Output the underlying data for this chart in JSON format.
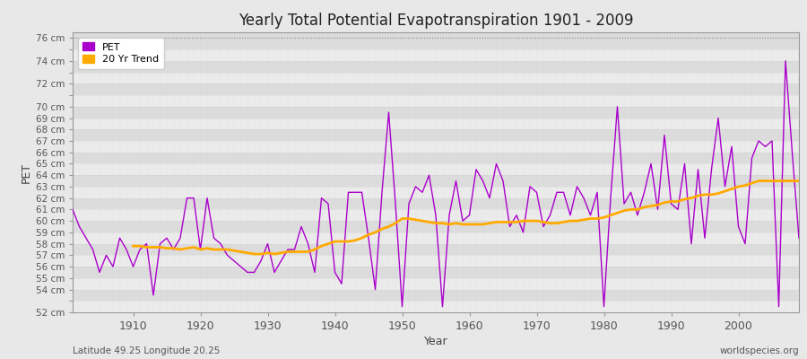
{
  "title": "Yearly Total Potential Evapotranspiration 1901 - 2009",
  "xlabel": "Year",
  "ylabel": "PET",
  "subtitle": "Latitude 49.25 Longitude 20.25",
  "watermark": "worldspecies.org",
  "pet_color": "#aa00cc",
  "trend_color": "#ffaa00",
  "bg_color": "#e8e8e8",
  "plot_bg_light": "#ebebeb",
  "plot_bg_dark": "#dcdcdc",
  "grid_color": "#cccccc",
  "years": [
    1901,
    1902,
    1903,
    1904,
    1905,
    1906,
    1907,
    1908,
    1909,
    1910,
    1911,
    1912,
    1913,
    1914,
    1915,
    1916,
    1917,
    1918,
    1919,
    1920,
    1921,
    1922,
    1923,
    1924,
    1925,
    1926,
    1927,
    1928,
    1929,
    1930,
    1931,
    1932,
    1933,
    1934,
    1935,
    1936,
    1937,
    1938,
    1939,
    1940,
    1941,
    1942,
    1943,
    1944,
    1945,
    1946,
    1947,
    1948,
    1949,
    1950,
    1951,
    1952,
    1953,
    1954,
    1955,
    1956,
    1957,
    1958,
    1959,
    1960,
    1961,
    1962,
    1963,
    1964,
    1965,
    1966,
    1967,
    1968,
    1969,
    1970,
    1971,
    1972,
    1973,
    1974,
    1975,
    1976,
    1977,
    1978,
    1979,
    1980,
    1981,
    1982,
    1983,
    1984,
    1985,
    1986,
    1987,
    1988,
    1989,
    1990,
    1991,
    1992,
    1993,
    1994,
    1995,
    1996,
    1997,
    1998,
    1999,
    2000,
    2001,
    2002,
    2003,
    2004,
    2005,
    2006,
    2007,
    2008,
    2009
  ],
  "pet_values": [
    61.0,
    59.5,
    58.5,
    57.5,
    55.5,
    57.0,
    56.0,
    58.5,
    57.5,
    56.0,
    57.5,
    58.0,
    53.5,
    58.0,
    58.5,
    57.5,
    58.5,
    62.0,
    62.0,
    57.5,
    62.0,
    58.5,
    58.0,
    57.0,
    56.5,
    56.0,
    55.5,
    55.5,
    56.5,
    58.0,
    55.5,
    56.5,
    57.5,
    57.5,
    59.5,
    58.0,
    55.5,
    62.0,
    61.5,
    55.5,
    54.5,
    62.5,
    62.5,
    62.5,
    58.5,
    54.0,
    62.5,
    69.5,
    61.5,
    52.5,
    61.5,
    63.0,
    62.5,
    64.0,
    60.5,
    52.5,
    60.5,
    63.5,
    60.0,
    60.5,
    64.5,
    63.5,
    62.0,
    65.0,
    63.5,
    59.5,
    60.5,
    59.0,
    63.0,
    62.5,
    59.5,
    60.5,
    62.5,
    62.5,
    60.5,
    63.0,
    62.0,
    60.5,
    62.5,
    52.5,
    62.0,
    70.0,
    61.5,
    62.5,
    60.5,
    62.5,
    65.0,
    61.0,
    67.5,
    61.5,
    61.0,
    65.0,
    58.0,
    64.5,
    58.5,
    64.5,
    69.0,
    63.0,
    66.5,
    59.5,
    58.0,
    65.5,
    67.0,
    66.5,
    67.0,
    52.5,
    74.0,
    66.0,
    58.5
  ],
  "trend_years": [
    1910,
    1911,
    1912,
    1913,
    1914,
    1915,
    1916,
    1917,
    1918,
    1919,
    1920,
    1921,
    1922,
    1923,
    1924,
    1925,
    1926,
    1927,
    1928,
    1929,
    1930,
    1931,
    1932,
    1933,
    1934,
    1935,
    1936,
    1937,
    1938,
    1939,
    1940,
    1941,
    1942,
    1943,
    1944,
    1945,
    1946,
    1947,
    1948,
    1949,
    1950,
    1951,
    1952,
    1953,
    1954,
    1955,
    1956,
    1957,
    1958,
    1959,
    1960,
    1961,
    1962,
    1963,
    1964,
    1965,
    1966,
    1967,
    1968,
    1969,
    1970,
    1971,
    1972,
    1973,
    1974,
    1975,
    1976,
    1977,
    1978,
    1979,
    1980,
    1981,
    1982,
    1983,
    1984,
    1985,
    1986,
    1987,
    1988,
    1989,
    1990,
    1991,
    1992,
    1993,
    1994,
    1995,
    1996,
    1997,
    1998,
    1999,
    2000,
    2001,
    2002,
    2003,
    2004,
    2005,
    2006,
    2007,
    2008,
    2009
  ],
  "trend_values": [
    57.8,
    57.8,
    57.7,
    57.7,
    57.7,
    57.6,
    57.6,
    57.5,
    57.6,
    57.7,
    57.5,
    57.6,
    57.5,
    57.5,
    57.5,
    57.4,
    57.3,
    57.2,
    57.1,
    57.1,
    57.2,
    57.1,
    57.2,
    57.3,
    57.3,
    57.3,
    57.3,
    57.5,
    57.8,
    58.0,
    58.2,
    58.2,
    58.2,
    58.3,
    58.5,
    58.8,
    59.0,
    59.3,
    59.5,
    59.8,
    60.2,
    60.2,
    60.1,
    60.0,
    59.9,
    59.8,
    59.8,
    59.7,
    59.8,
    59.7,
    59.7,
    59.7,
    59.7,
    59.8,
    59.9,
    59.9,
    59.9,
    59.9,
    60.0,
    60.0,
    60.0,
    59.9,
    59.8,
    59.8,
    59.9,
    60.0,
    60.0,
    60.1,
    60.2,
    60.2,
    60.3,
    60.5,
    60.7,
    60.9,
    61.0,
    61.0,
    61.2,
    61.3,
    61.4,
    61.6,
    61.7,
    61.7,
    61.9,
    62.0,
    62.2,
    62.3,
    62.3,
    62.4,
    62.6,
    62.8,
    63.0,
    63.1,
    63.3,
    63.5,
    63.5,
    63.5,
    63.5,
    63.5,
    63.5,
    63.5
  ],
  "xlim": [
    1901,
    2009
  ],
  "ylim": [
    52,
    76.5
  ],
  "xticks": [
    1910,
    1920,
    1930,
    1940,
    1950,
    1960,
    1970,
    1980,
    1990,
    2000
  ],
  "ytick_vals": [
    52,
    53,
    54,
    55,
    56,
    57,
    58,
    59,
    60,
    61,
    62,
    63,
    64,
    65,
    66,
    67,
    68,
    69,
    70,
    71,
    72,
    73,
    74,
    75,
    76
  ],
  "ytick_labeled": [
    52,
    54,
    55,
    56,
    57,
    58,
    59,
    60,
    61,
    62,
    63,
    64,
    65,
    66,
    67,
    68,
    69,
    70,
    72,
    74,
    76
  ]
}
